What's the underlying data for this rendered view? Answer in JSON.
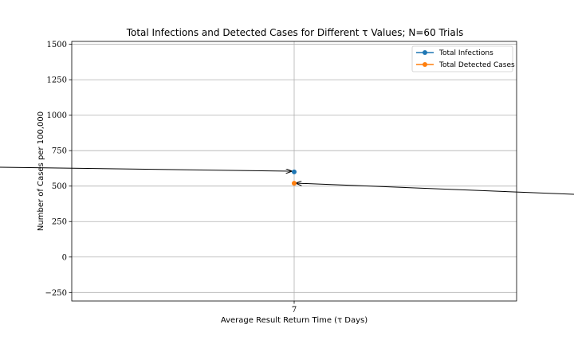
{
  "chart_data": {
    "type": "scatter",
    "title": "Total Infections and Detected Cases for Different τ Values; N=60 Trials",
    "xlabel": "Average Result Return Time (τ Days)",
    "ylabel": "Number of Cases per 100,000",
    "x_ticks": [
      "7"
    ],
    "x_tick_values": [
      7
    ],
    "xlim": [
      6.96,
      7.04
    ],
    "y_ticks": [
      -250,
      0,
      250,
      500,
      750,
      1000,
      1250,
      1500
    ],
    "y_tick_labels": [
      "−250",
      "0",
      "250",
      "500",
      "750",
      "1000",
      "1250",
      "1500"
    ],
    "ylim": [
      -310,
      1520
    ],
    "grid": true,
    "legend_position": "top-right",
    "series": [
      {
        "name": "Total Infections",
        "color": "#1f77b4",
        "points": [
          {
            "x": 7,
            "y": 600
          }
        ]
      },
      {
        "name": "Total Detected Cases",
        "color": "#ff7f0e",
        "points": [
          {
            "x": 7,
            "y": 520
          }
        ]
      }
    ]
  }
}
